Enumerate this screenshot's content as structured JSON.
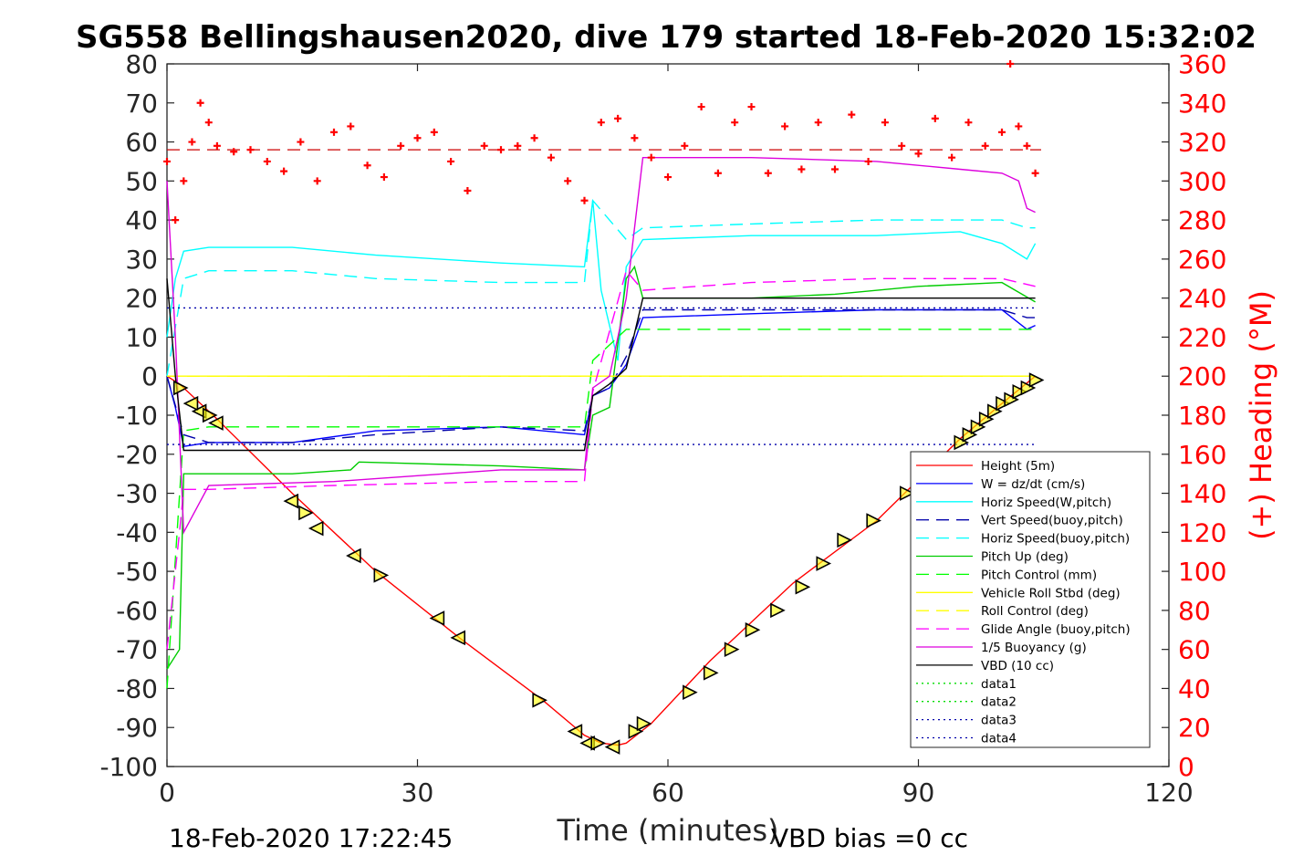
{
  "chart_data": {
    "type": "line",
    "title": "SG558 Bellingshausen2020, dive 179 started 18-Feb-2020 15:32:02",
    "xlabel": "Time (minutes)",
    "ylabel_right": "(+) Heading (°M)",
    "xlim": [
      0,
      120
    ],
    "ylim": [
      -100,
      80
    ],
    "ylim_right": [
      0,
      360
    ],
    "x_ticks": [
      "0",
      "30",
      "60",
      "90",
      "120"
    ],
    "y_ticks": [
      "80",
      "70",
      "60",
      "50",
      "40",
      "30",
      "20",
      "10",
      "0",
      "-10",
      "-20",
      "-30",
      "-40",
      "-50",
      "-60",
      "-70",
      "-80",
      "-90",
      "-100"
    ],
    "y_right_ticks": [
      "360",
      "340",
      "320",
      "300",
      "280",
      "260",
      "240",
      "220",
      "200",
      "180",
      "160",
      "140",
      "120",
      "100",
      "80",
      "60",
      "40",
      "20",
      "0"
    ],
    "grid": false,
    "legend_position": "bottom-right",
    "footer_left": "18-Feb-2020 17:22:45",
    "footer_right": "VBD bias =0 cc",
    "series": [
      {
        "name": "Height (5m)",
        "color": "#ff0000",
        "style": "solid",
        "x": [
          0,
          1.5,
          6,
          15,
          25,
          35,
          45,
          50,
          52,
          54,
          55,
          58,
          65,
          75,
          85,
          95,
          100,
          104
        ],
        "y": [
          0,
          -2,
          -11,
          -30,
          -50,
          -67,
          -83,
          -92,
          -94,
          -94.5,
          -94,
          -89,
          -73,
          -53,
          -37,
          -16,
          -7,
          0
        ]
      },
      {
        "name": "W = dz/dt (cm/s)",
        "color": "#0000ff",
        "style": "solid",
        "x": [
          0,
          1,
          2,
          5,
          15,
          25,
          40,
          50,
          51,
          53,
          55,
          57,
          70,
          85,
          100,
          103,
          104
        ],
        "y": [
          0,
          -8,
          -18,
          -17,
          -17,
          -14,
          -13,
          -15,
          -5,
          -3,
          3,
          15,
          16,
          17,
          17,
          12,
          13
        ]
      },
      {
        "name": "Horiz Speed(W,pitch)",
        "color": "#00ffff",
        "style": "solid",
        "x": [
          0,
          1,
          2,
          5,
          15,
          25,
          40,
          50,
          51,
          52,
          54,
          55,
          57,
          70,
          85,
          95,
          100,
          103,
          104
        ],
        "y": [
          10,
          25,
          32,
          33,
          33,
          31,
          29,
          28,
          45,
          22,
          4,
          28,
          35,
          36,
          36,
          37,
          34,
          30,
          34
        ]
      },
      {
        "name": "Vert Speed(buoy,pitch)",
        "color": "#0000aa",
        "style": "dash",
        "x": [
          0,
          2,
          5,
          15,
          25,
          40,
          50,
          51,
          53,
          55,
          57,
          70,
          85,
          100,
          103,
          104
        ],
        "y": [
          0,
          -15,
          -17,
          -17,
          -15,
          -13,
          -14,
          -5,
          -3,
          5,
          17,
          17,
          17,
          17,
          15,
          15
        ]
      },
      {
        "name": "Horiz Speed(buoy,pitch)",
        "color": "#00ffff",
        "style": "dash",
        "x": [
          0,
          2,
          5,
          15,
          25,
          40,
          50,
          51,
          55,
          57,
          70,
          85,
          100,
          103,
          104
        ],
        "y": [
          0,
          25,
          27,
          27,
          25,
          24,
          24,
          45,
          35,
          38,
          39,
          40,
          40,
          38,
          38
        ]
      },
      {
        "name": "Pitch Up (deg)",
        "color": "#00cc00",
        "style": "solid",
        "x": [
          0,
          1.5,
          2,
          5,
          15,
          22,
          23,
          40,
          50,
          51,
          53,
          55,
          56,
          57,
          70,
          80,
          90,
          100,
          104
        ],
        "y": [
          -75,
          -70,
          -25,
          -25,
          -25,
          -24,
          -22,
          -23,
          -24,
          -10,
          -8,
          25,
          28,
          20,
          20,
          21,
          23,
          24,
          19
        ]
      },
      {
        "name": "Pitch Control (mm)",
        "color": "#00ff00",
        "style": "dash",
        "x": [
          0,
          2,
          5,
          20,
          40,
          50,
          51,
          55,
          57,
          70,
          85,
          100,
          104
        ],
        "y": [
          -80,
          -14,
          -13,
          -13,
          -13,
          -13,
          4,
          12,
          12,
          12,
          12,
          12,
          12
        ]
      },
      {
        "name": "Vehicle Roll Stbd (deg)",
        "color": "#ffff00",
        "style": "solid",
        "x": [
          0,
          5,
          10,
          20,
          30,
          40,
          50,
          55,
          60,
          70,
          80,
          90,
          100,
          104
        ],
        "y": [
          0,
          0,
          0,
          0,
          0,
          0,
          0,
          0,
          0,
          0,
          0,
          0,
          0,
          0
        ]
      },
      {
        "name": "Roll Control (deg)",
        "color": "#ffff00",
        "style": "dash",
        "x": [
          0,
          5,
          10,
          20,
          30,
          40,
          50,
          55,
          60,
          70,
          80,
          90,
          100,
          104
        ],
        "y": [
          0,
          0,
          0,
          0,
          0,
          0,
          0,
          0,
          0,
          0,
          0,
          0,
          0,
          0
        ]
      },
      {
        "name": "Glide Angle (buoy,pitch)",
        "color": "#ff00ff",
        "style": "dash",
        "x": [
          0,
          1.5,
          2,
          5,
          20,
          40,
          50,
          51,
          55,
          57,
          70,
          85,
          100,
          104
        ],
        "y": [
          -70,
          -40,
          -29,
          -29,
          -28,
          -27,
          -27,
          -4,
          27,
          22,
          24,
          25,
          25,
          23
        ]
      },
      {
        "name": "1/5 Buoyancy (g)",
        "color": "#dd00dd",
        "style": "solid",
        "x": [
          0,
          1,
          2,
          5,
          20,
          40,
          50,
          51,
          53,
          55,
          57,
          70,
          85,
          95,
          100,
          102,
          103,
          104
        ],
        "y": [
          50,
          10,
          -40,
          -28,
          -27,
          -24,
          -24,
          -3,
          0,
          20,
          56,
          56,
          55,
          53,
          52,
          50,
          43,
          42
        ]
      },
      {
        "name": "VBD (10 cc)",
        "color": "#000000",
        "style": "solid",
        "x": [
          0,
          1,
          2,
          5,
          20,
          40,
          50,
          51,
          53,
          55,
          57,
          70,
          85,
          100,
          104
        ],
        "y": [
          25,
          0,
          -19,
          -19,
          -19,
          -19,
          -19,
          -5,
          -2,
          2,
          20,
          20,
          20,
          20,
          20
        ]
      },
      {
        "name": "data1",
        "color": "#00dd00",
        "style": "dot",
        "x": [],
        "y": []
      },
      {
        "name": "data2",
        "color": "#00dd00",
        "style": "dot",
        "x": [],
        "y": []
      },
      {
        "name": "data3",
        "color": "#0000aa",
        "style": "dot",
        "x": [
          0,
          104
        ],
        "y": [
          17.5,
          17.5
        ]
      },
      {
        "name": "data4",
        "color": "#0000aa",
        "style": "dot",
        "x": [
          0,
          104
        ],
        "y": [
          -17.5,
          -17.5
        ]
      }
    ],
    "heading": {
      "color": "#ff0000",
      "axis": "right",
      "marker": "+",
      "x": [
        0,
        1,
        2,
        3,
        4,
        5,
        6,
        8,
        10,
        12,
        14,
        16,
        18,
        20,
        22,
        24,
        26,
        28,
        30,
        32,
        34,
        36,
        38,
        40,
        42,
        44,
        46,
        48,
        50,
        52,
        54,
        56,
        58,
        60,
        62,
        64,
        66,
        68,
        70,
        72,
        74,
        76,
        78,
        80,
        82,
        84,
        86,
        88,
        90,
        92,
        94,
        96,
        98,
        100,
        101,
        102,
        103,
        104
      ],
      "y": [
        310,
        280,
        300,
        320,
        340,
        330,
        318,
        315,
        316,
        310,
        305,
        320,
        300,
        325,
        328,
        308,
        302,
        318,
        322,
        325,
        310,
        295,
        318,
        316,
        318,
        322,
        312,
        300,
        290,
        330,
        332,
        322,
        312,
        302,
        318,
        338,
        304,
        330,
        338,
        304,
        328,
        306,
        330,
        306,
        334,
        310,
        330,
        318,
        314,
        332,
        312,
        330,
        318,
        325,
        360,
        328,
        318,
        304
      ]
    },
    "markers": {
      "color": "#000000",
      "fill": "#ffff00",
      "shape": "triangle",
      "x": [
        1.5,
        3,
        4,
        5,
        6,
        15,
        16.5,
        18,
        22.5,
        25.5,
        32.5,
        35,
        44.5,
        49,
        50.5,
        51.5,
        53.5,
        56,
        57,
        62.5,
        65,
        67.5,
        70,
        73,
        76,
        78.5,
        81,
        84.5,
        88.5,
        95,
        96,
        97,
        98,
        99,
        100,
        101,
        102,
        103,
        104
      ],
      "y": [
        -3,
        -7,
        -9,
        -10,
        -12,
        -32,
        -35,
        -39,
        -46,
        -51,
        -62,
        -67,
        -83,
        -91,
        -94,
        -94,
        -95,
        -91,
        -89,
        -81,
        -76,
        -70,
        -65,
        -60,
        -54,
        -48,
        -42,
        -37,
        -30,
        -17,
        -15,
        -13,
        -11,
        -9,
        -7,
        -6,
        -4,
        -3,
        -1
      ]
    },
    "dashed_reference": {
      "color": "#cc0000",
      "axis": "right",
      "value": 316
    }
  }
}
